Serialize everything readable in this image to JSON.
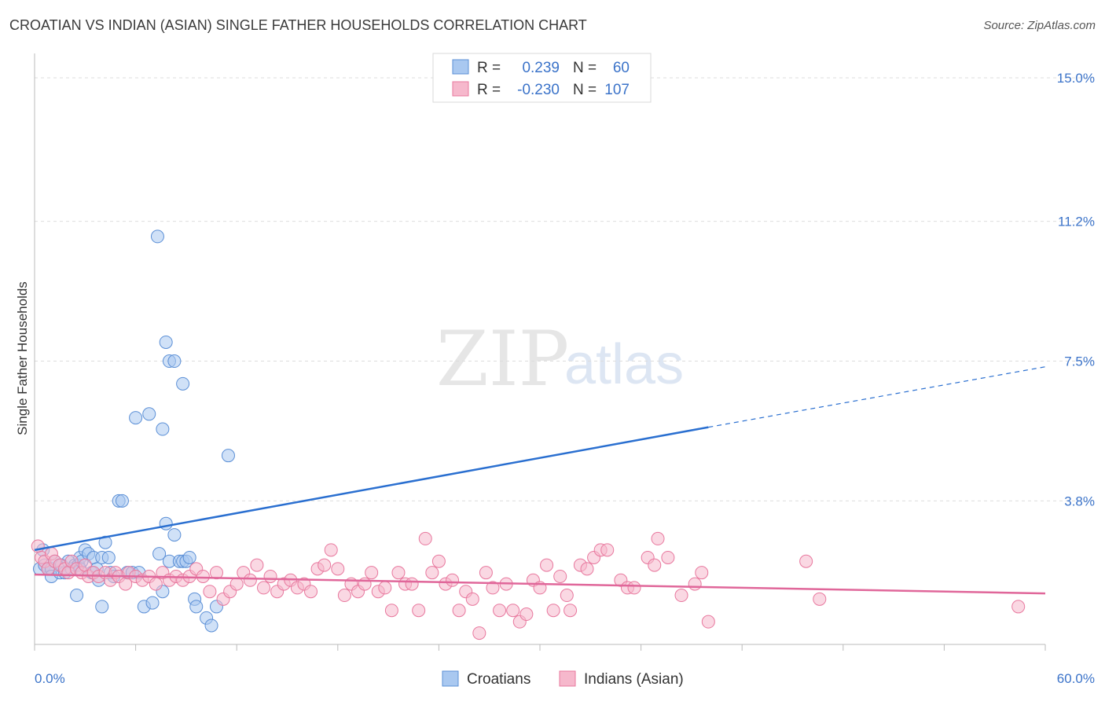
{
  "header": {
    "title": "CROATIAN VS INDIAN (ASIAN) SINGLE FATHER HOUSEHOLDS CORRELATION CHART",
    "source": "Source: ZipAtlas.com"
  },
  "watermark": {
    "part1": "ZIP",
    "part2": "atlas"
  },
  "legend": {
    "rows": [
      {
        "r_label": "R =",
        "r_value": "0.239",
        "n_label": "N =",
        "n_value": "60",
        "color": "#a9c8f0"
      },
      {
        "r_label": "R =",
        "r_value": "-0.230",
        "n_label": "N =",
        "n_value": "107",
        "color": "#f6b8cc"
      }
    ]
  },
  "chart_data": {
    "type": "scatter",
    "title": "CROATIAN VS INDIAN (ASIAN) SINGLE FATHER HOUSEHOLDS CORRELATION CHART",
    "xlabel": "",
    "ylabel": "Single Father Households",
    "xlim": [
      0,
      60
    ],
    "ylim": [
      0,
      15.5
    ],
    "x_tick_labels": [
      "0.0%",
      "60.0%"
    ],
    "y_ticks": [
      3.8,
      7.5,
      11.2,
      15.0
    ],
    "y_tick_labels": [
      "3.8%",
      "7.5%",
      "11.2%",
      "15.0%"
    ],
    "grid": true,
    "series": [
      {
        "name": "Croatians",
        "color": "#a9c8f0",
        "stroke": "#5b8fd6",
        "trend": {
          "x0": 0,
          "y0": 2.5,
          "x1": 40,
          "y1": 5.75,
          "dash_to_x": 60,
          "dash_to_y": 7.35,
          "color": "#2a6fd0"
        },
        "points": [
          [
            0.3,
            2.0
          ],
          [
            0.5,
            2.5
          ],
          [
            0.6,
            2.1
          ],
          [
            0.8,
            2.0
          ],
          [
            1.0,
            2.0
          ],
          [
            1.0,
            1.8
          ],
          [
            1.2,
            2.2
          ],
          [
            1.5,
            1.9
          ],
          [
            1.6,
            2.1
          ],
          [
            1.8,
            1.9
          ],
          [
            2.0,
            2.2
          ],
          [
            2.2,
            2.0
          ],
          [
            2.4,
            2.1
          ],
          [
            2.5,
            1.3
          ],
          [
            2.6,
            2.1
          ],
          [
            2.7,
            2.3
          ],
          [
            2.7,
            2.0
          ],
          [
            2.8,
            2.2
          ],
          [
            3.0,
            2.5
          ],
          [
            3.2,
            2.4
          ],
          [
            3.4,
            1.9
          ],
          [
            3.5,
            2.3
          ],
          [
            3.7,
            2.0
          ],
          [
            3.8,
            1.7
          ],
          [
            4.0,
            2.3
          ],
          [
            4.0,
            1.0
          ],
          [
            4.2,
            2.7
          ],
          [
            4.4,
            2.3
          ],
          [
            4.5,
            1.9
          ],
          [
            4.7,
            1.8
          ],
          [
            5.0,
            3.8
          ],
          [
            5.2,
            3.8
          ],
          [
            5.5,
            1.9
          ],
          [
            5.8,
            1.9
          ],
          [
            6.0,
            6.0
          ],
          [
            6.2,
            1.9
          ],
          [
            6.5,
            1.0
          ],
          [
            6.8,
            6.1
          ],
          [
            7.0,
            1.1
          ],
          [
            7.4,
            2.4
          ],
          [
            7.6,
            1.4
          ],
          [
            7.8,
            3.2
          ],
          [
            8.0,
            2.2
          ],
          [
            8.3,
            2.9
          ],
          [
            8.6,
            2.2
          ],
          [
            8.8,
            2.2
          ],
          [
            7.3,
            10.8
          ],
          [
            7.6,
            5.7
          ],
          [
            7.8,
            8.0
          ],
          [
            8.0,
            7.5
          ],
          [
            8.3,
            7.5
          ],
          [
            8.8,
            6.9
          ],
          [
            9.0,
            2.2
          ],
          [
            9.2,
            2.3
          ],
          [
            9.5,
            1.2
          ],
          [
            9.6,
            1.0
          ],
          [
            10.2,
            0.7
          ],
          [
            10.5,
            0.5
          ],
          [
            10.8,
            1.0
          ],
          [
            11.5,
            5.0
          ]
        ]
      },
      {
        "name": "Indians (Asian)",
        "color": "#f6b8cc",
        "stroke": "#e8789e",
        "trend": {
          "x0": 0,
          "y0": 1.85,
          "x1": 60,
          "y1": 1.35,
          "color": "#e0679a"
        },
        "points": [
          [
            0.2,
            2.6
          ],
          [
            0.4,
            2.3
          ],
          [
            0.6,
            2.2
          ],
          [
            0.8,
            2.0
          ],
          [
            1.0,
            2.4
          ],
          [
            1.2,
            2.2
          ],
          [
            1.5,
            2.1
          ],
          [
            1.8,
            2.0
          ],
          [
            2.0,
            1.9
          ],
          [
            2.2,
            2.2
          ],
          [
            2.5,
            2.0
          ],
          [
            2.8,
            1.9
          ],
          [
            3.0,
            2.1
          ],
          [
            3.2,
            1.8
          ],
          [
            3.5,
            1.9
          ],
          [
            3.8,
            1.8
          ],
          [
            4.2,
            1.9
          ],
          [
            4.5,
            1.7
          ],
          [
            4.8,
            1.9
          ],
          [
            5.0,
            1.8
          ],
          [
            5.4,
            1.6
          ],
          [
            5.6,
            1.9
          ],
          [
            6.0,
            1.8
          ],
          [
            6.4,
            1.7
          ],
          [
            6.8,
            1.8
          ],
          [
            7.2,
            1.6
          ],
          [
            7.6,
            1.9
          ],
          [
            8.0,
            1.7
          ],
          [
            8.4,
            1.8
          ],
          [
            8.8,
            1.7
          ],
          [
            9.2,
            1.8
          ],
          [
            9.6,
            2.0
          ],
          [
            10.0,
            1.8
          ],
          [
            10.4,
            1.4
          ],
          [
            10.8,
            1.9
          ],
          [
            11.2,
            1.2
          ],
          [
            11.6,
            1.4
          ],
          [
            12.0,
            1.6
          ],
          [
            12.4,
            1.9
          ],
          [
            12.8,
            1.7
          ],
          [
            13.2,
            2.1
          ],
          [
            13.6,
            1.5
          ],
          [
            14.0,
            1.8
          ],
          [
            14.4,
            1.4
          ],
          [
            14.8,
            1.6
          ],
          [
            15.2,
            1.7
          ],
          [
            15.6,
            1.5
          ],
          [
            16.0,
            1.6
          ],
          [
            16.4,
            1.4
          ],
          [
            16.8,
            2.0
          ],
          [
            17.2,
            2.1
          ],
          [
            17.6,
            2.5
          ],
          [
            18.0,
            2.0
          ],
          [
            18.4,
            1.3
          ],
          [
            18.8,
            1.6
          ],
          [
            19.2,
            1.4
          ],
          [
            19.6,
            1.6
          ],
          [
            20.0,
            1.9
          ],
          [
            20.4,
            1.4
          ],
          [
            20.8,
            1.5
          ],
          [
            21.2,
            0.9
          ],
          [
            21.6,
            1.9
          ],
          [
            22.0,
            1.6
          ],
          [
            22.4,
            1.6
          ],
          [
            22.8,
            0.9
          ],
          [
            23.2,
            2.8
          ],
          [
            23.6,
            1.9
          ],
          [
            24.0,
            2.2
          ],
          [
            24.4,
            1.6
          ],
          [
            24.8,
            1.7
          ],
          [
            25.2,
            0.9
          ],
          [
            25.6,
            1.4
          ],
          [
            26.0,
            1.2
          ],
          [
            26.4,
            0.3
          ],
          [
            26.8,
            1.9
          ],
          [
            27.2,
            1.5
          ],
          [
            27.6,
            0.9
          ],
          [
            28.0,
            1.6
          ],
          [
            28.4,
            0.9
          ],
          [
            28.8,
            0.6
          ],
          [
            29.2,
            0.8
          ],
          [
            29.6,
            1.7
          ],
          [
            30.0,
            1.5
          ],
          [
            30.4,
            2.1
          ],
          [
            30.8,
            0.9
          ],
          [
            31.2,
            1.8
          ],
          [
            31.6,
            1.3
          ],
          [
            31.8,
            0.9
          ],
          [
            32.4,
            2.1
          ],
          [
            32.8,
            2.0
          ],
          [
            33.2,
            2.3
          ],
          [
            33.6,
            2.5
          ],
          [
            34.0,
            2.5
          ],
          [
            34.8,
            1.7
          ],
          [
            35.2,
            1.5
          ],
          [
            35.6,
            1.5
          ],
          [
            36.4,
            2.3
          ],
          [
            36.8,
            2.1
          ],
          [
            37.0,
            2.8
          ],
          [
            37.6,
            2.3
          ],
          [
            38.4,
            1.3
          ],
          [
            39.2,
            1.6
          ],
          [
            39.6,
            1.9
          ],
          [
            40.0,
            0.6
          ],
          [
            45.8,
            2.2
          ],
          [
            46.6,
            1.2
          ],
          [
            58.4,
            1.0
          ]
        ]
      }
    ]
  },
  "bottom_legend": {
    "items": [
      "Croatians",
      "Indians (Asian)"
    ]
  }
}
